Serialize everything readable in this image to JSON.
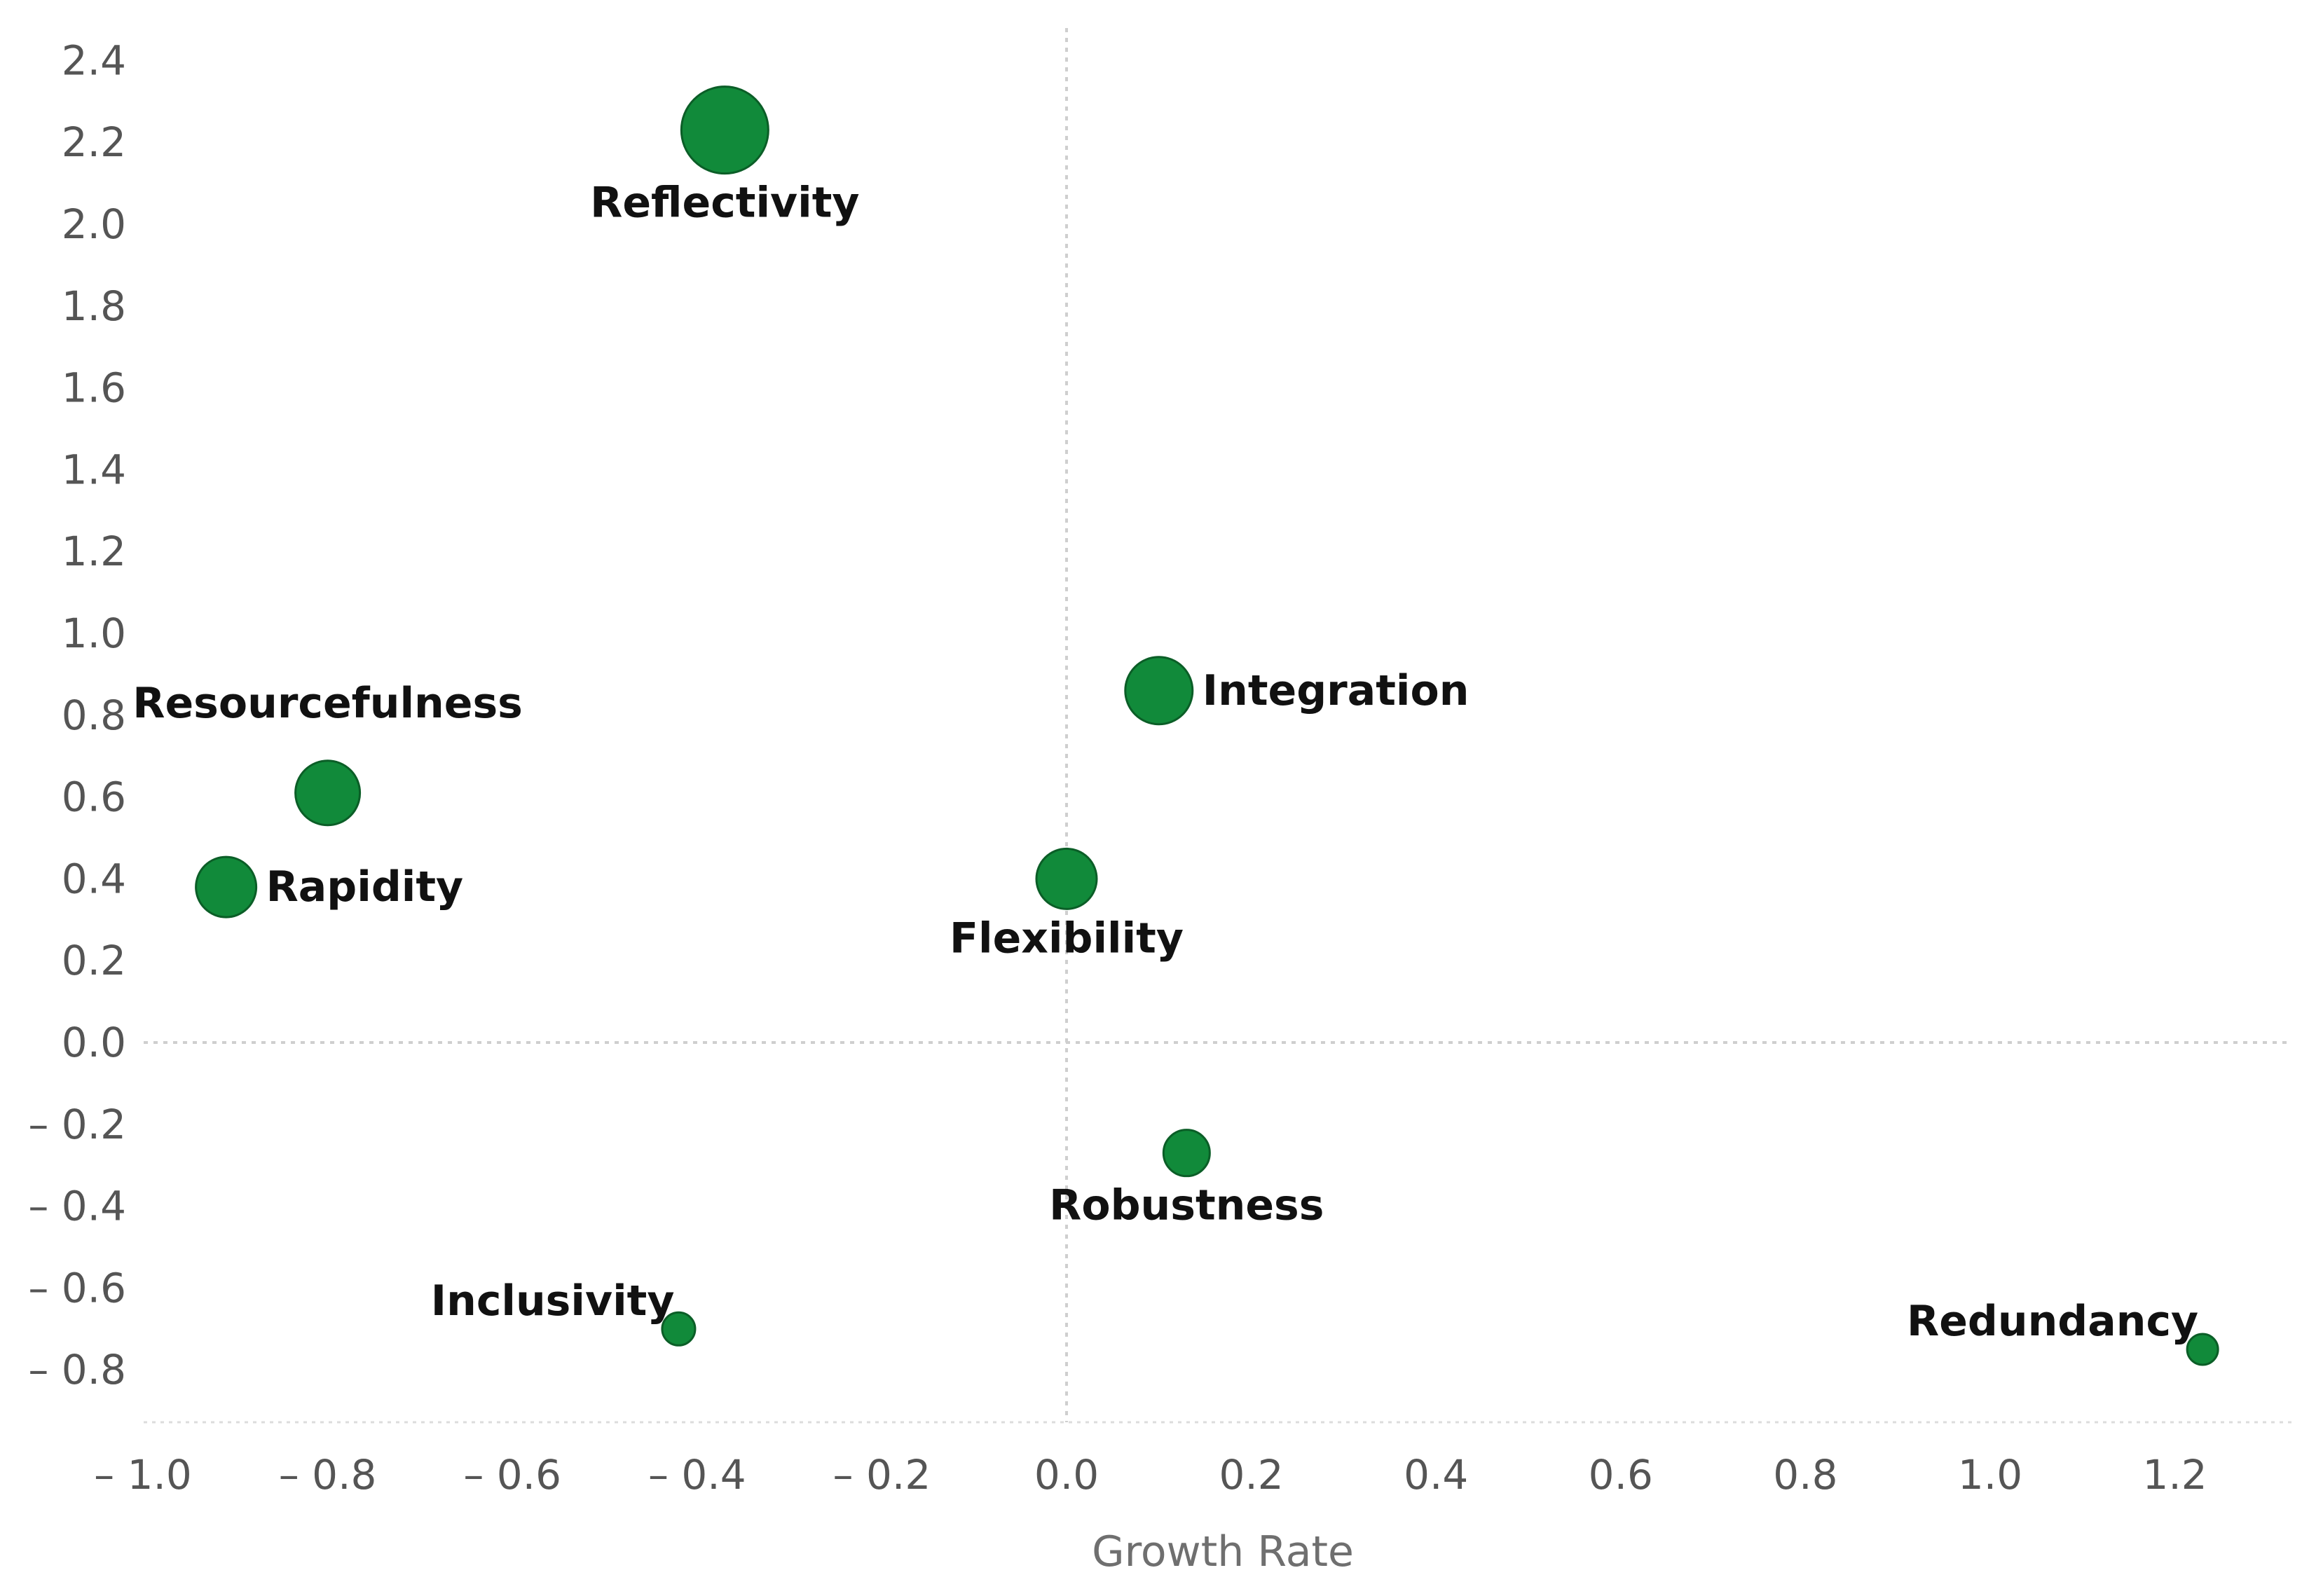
{
  "chart_data": {
    "type": "scatter",
    "xlabel": "Growth Rate",
    "ylabel": "",
    "xlim": [
      -1.0,
      1.33
    ],
    "ylim": [
      -0.92,
      2.45
    ],
    "x_ticks": [
      {
        "value": -1.0,
        "label": "– 1.0"
      },
      {
        "value": -0.8,
        "label": "– 0.8"
      },
      {
        "value": -0.6,
        "label": "– 0.6"
      },
      {
        "value": -0.4,
        "label": "– 0.4"
      },
      {
        "value": -0.2,
        "label": "– 0.2"
      },
      {
        "value": 0.0,
        "label": "0.0"
      },
      {
        "value": 0.2,
        "label": "0.2"
      },
      {
        "value": 0.4,
        "label": "0.4"
      },
      {
        "value": 0.6,
        "label": "0.6"
      },
      {
        "value": 0.8,
        "label": "0.8"
      },
      {
        "value": 1.0,
        "label": "1.0"
      },
      {
        "value": 1.2,
        "label": "1.2"
      }
    ],
    "y_ticks": [
      {
        "value": 2.4,
        "label": "2.4"
      },
      {
        "value": 2.2,
        "label": "2.2"
      },
      {
        "value": 2.0,
        "label": "2.0"
      },
      {
        "value": 1.8,
        "label": "1.8"
      },
      {
        "value": 1.6,
        "label": "1.6"
      },
      {
        "value": 1.4,
        "label": "1.4"
      },
      {
        "value": 1.2,
        "label": "1.2"
      },
      {
        "value": 1.0,
        "label": "1.0"
      },
      {
        "value": 0.8,
        "label": "0.8"
      },
      {
        "value": 0.6,
        "label": "0.6"
      },
      {
        "value": 0.4,
        "label": "0.4"
      },
      {
        "value": 0.2,
        "label": "0.2"
      },
      {
        "value": 0.0,
        "label": "0.0"
      },
      {
        "value": -0.2,
        "label": "– 0.2"
      },
      {
        "value": -0.4,
        "label": "– 0.4"
      },
      {
        "value": -0.6,
        "label": "– 0.6"
      },
      {
        "value": -0.8,
        "label": "– 0.8"
      }
    ],
    "bubble_color": "#118a3a",
    "bubble_stroke": "#0b5e27",
    "points": [
      {
        "name": "Reflectivity",
        "x": -0.37,
        "y": 2.23,
        "size": 1.0,
        "label_pos": "below"
      },
      {
        "name": "Integration",
        "x": 0.1,
        "y": 0.86,
        "size": 0.72,
        "label_pos": "right"
      },
      {
        "name": "Resourcefulness",
        "x": -0.8,
        "y": 0.61,
        "size": 0.68,
        "label_pos": "above"
      },
      {
        "name": "Rapidity",
        "x": -0.91,
        "y": 0.38,
        "size": 0.62,
        "label_pos": "right"
      },
      {
        "name": "Flexibility",
        "x": 0.0,
        "y": 0.4,
        "size": 0.62,
        "label_pos": "below"
      },
      {
        "name": "Robustness",
        "x": 0.13,
        "y": -0.27,
        "size": 0.42,
        "label_pos": "below"
      },
      {
        "name": "Inclusivity",
        "x": -0.42,
        "y": -0.7,
        "size": 0.23,
        "label_pos": "upper-left"
      },
      {
        "name": "Redundancy",
        "x": 1.23,
        "y": -0.75,
        "size": 0.2,
        "label_pos": "upper-left"
      }
    ]
  }
}
